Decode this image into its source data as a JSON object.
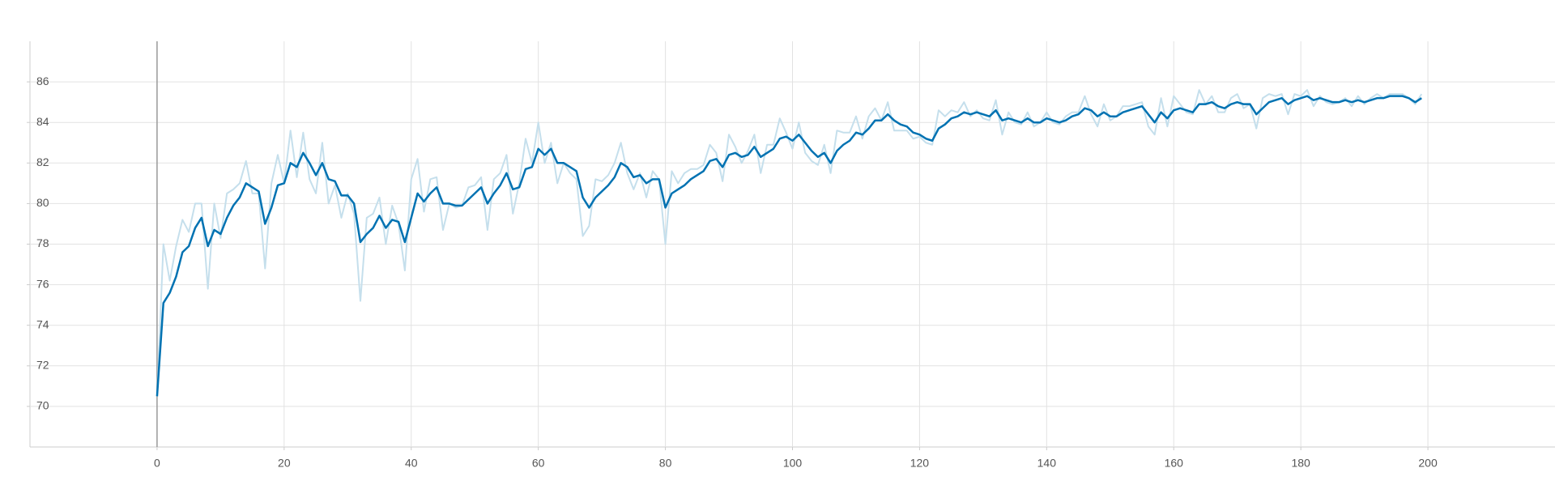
{
  "chart_data": {
    "type": "line",
    "x": [
      0,
      1,
      2,
      3,
      4,
      5,
      6,
      7,
      8,
      9,
      10,
      11,
      12,
      13,
      14,
      15,
      16,
      17,
      18,
      19,
      20,
      21,
      22,
      23,
      24,
      25,
      26,
      27,
      28,
      29,
      30,
      31,
      32,
      33,
      34,
      35,
      36,
      37,
      38,
      39,
      40,
      41,
      42,
      43,
      44,
      45,
      46,
      47,
      48,
      49,
      50,
      51,
      52,
      53,
      54,
      55,
      56,
      57,
      58,
      59,
      60,
      61,
      62,
      63,
      64,
      65,
      66,
      67,
      68,
      69,
      70,
      71,
      72,
      73,
      74,
      75,
      76,
      77,
      78,
      79,
      80,
      81,
      82,
      83,
      84,
      85,
      86,
      87,
      88,
      89,
      90,
      91,
      92,
      93,
      94,
      95,
      96,
      97,
      98,
      99,
      100,
      101,
      102,
      103,
      104,
      105,
      106,
      107,
      108,
      109,
      110,
      111,
      112,
      113,
      114,
      115,
      116,
      117,
      118,
      119,
      120,
      121,
      122,
      123,
      124,
      125,
      126,
      127,
      128,
      129,
      130,
      131,
      132,
      133,
      134,
      135,
      136,
      137,
      138,
      139,
      140,
      141,
      142,
      143,
      144,
      145,
      146,
      147,
      148,
      149,
      150,
      151,
      152,
      153,
      154,
      155,
      156,
      157,
      158,
      159,
      160,
      161,
      162,
      163,
      164,
      165,
      166,
      167,
      168,
      169,
      170,
      171,
      172,
      173,
      174,
      175,
      176,
      177,
      178,
      179,
      180,
      181,
      182,
      183,
      184,
      185,
      186,
      187,
      188,
      189,
      190,
      191,
      192,
      193,
      194,
      195,
      196,
      197,
      198,
      199
    ],
    "series": [
      {
        "color": "#c5dfec",
        "values": [
          70.5,
          78.0,
          76.2,
          77.9,
          79.2,
          78.6,
          80.0,
          80.0,
          75.8,
          80.0,
          78.3,
          80.5,
          80.7,
          81.0,
          82.1,
          80.5,
          80.5,
          76.8,
          81.0,
          82.4,
          81.0,
          83.6,
          81.3,
          83.5,
          81.2,
          80.5,
          83.0,
          80.0,
          80.9,
          79.3,
          80.5,
          79.5,
          75.2,
          79.3,
          79.5,
          80.3,
          78.0,
          79.9,
          79.0,
          76.7,
          81.2,
          82.2,
          79.6,
          81.2,
          81.3,
          78.7,
          80.0,
          79.8,
          79.9,
          80.8,
          80.9,
          81.3,
          78.7,
          81.2,
          81.5,
          82.4,
          79.5,
          81.0,
          83.2,
          82.0,
          84.0,
          82.0,
          83.0,
          81.0,
          82.0,
          81.5,
          81.2,
          78.4,
          78.9,
          81.2,
          81.1,
          81.4,
          82.0,
          83.0,
          81.5,
          80.7,
          81.5,
          80.3,
          81.6,
          81.2,
          78.0,
          81.6,
          81.0,
          81.5,
          81.7,
          81.7,
          81.9,
          82.9,
          82.5,
          81.1,
          83.4,
          82.8,
          82.0,
          82.6,
          83.4,
          81.5,
          82.9,
          82.9,
          84.2,
          83.5,
          82.7,
          84.0,
          82.5,
          82.1,
          81.9,
          82.9,
          81.5,
          83.6,
          83.5,
          83.5,
          84.3,
          83.2,
          84.3,
          84.7,
          84.1,
          85.0,
          83.6,
          83.6,
          83.6,
          83.2,
          83.3,
          83.0,
          82.9,
          84.6,
          84.3,
          84.6,
          84.5,
          85.0,
          84.3,
          84.6,
          84.2,
          84.1,
          85.1,
          83.4,
          84.5,
          84.0,
          83.9,
          84.5,
          83.8,
          84.0,
          84.5,
          84.0,
          83.9,
          84.3,
          84.5,
          84.5,
          85.3,
          84.4,
          83.8,
          84.9,
          84.1,
          84.3,
          84.8,
          84.8,
          84.9,
          85.0,
          83.8,
          83.4,
          85.2,
          83.8,
          85.3,
          84.9,
          84.5,
          84.4,
          85.6,
          84.9,
          85.3,
          84.5,
          84.5,
          85.2,
          85.4,
          84.7,
          84.9,
          83.7,
          85.2,
          85.4,
          85.3,
          85.4,
          84.4,
          85.4,
          85.3,
          85.6,
          84.8,
          85.3,
          85.0,
          84.9,
          85.0,
          85.2,
          84.8,
          85.3,
          84.9,
          85.2,
          85.4,
          85.2,
          85.4,
          85.4,
          85.4,
          85.2,
          84.9,
          85.4
        ]
      },
      {
        "color": "#0072b2",
        "values": [
          70.5,
          75.1,
          75.6,
          76.4,
          77.6,
          77.9,
          78.8,
          79.3,
          77.9,
          78.7,
          78.5,
          79.3,
          79.9,
          80.3,
          81.0,
          80.8,
          80.6,
          79.0,
          79.8,
          80.9,
          81.0,
          82.0,
          81.8,
          82.5,
          82.0,
          81.4,
          82.0,
          81.2,
          81.1,
          80.4,
          80.4,
          80.0,
          78.1,
          78.5,
          78.8,
          79.4,
          78.8,
          79.2,
          79.1,
          78.1,
          79.3,
          80.5,
          80.1,
          80.5,
          80.8,
          80.0,
          80.0,
          79.9,
          79.9,
          80.2,
          80.5,
          80.8,
          80.0,
          80.5,
          80.9,
          81.5,
          80.7,
          80.8,
          81.7,
          81.8,
          82.7,
          82.4,
          82.7,
          82.0,
          82.0,
          81.8,
          81.6,
          80.3,
          79.8,
          80.3,
          80.6,
          80.9,
          81.3,
          82.0,
          81.8,
          81.3,
          81.4,
          81.0,
          81.2,
          81.2,
          79.8,
          80.5,
          80.7,
          80.9,
          81.2,
          81.4,
          81.6,
          82.1,
          82.2,
          81.8,
          82.4,
          82.5,
          82.3,
          82.4,
          82.8,
          82.3,
          82.5,
          82.7,
          83.2,
          83.3,
          83.1,
          83.4,
          83.0,
          82.6,
          82.3,
          82.5,
          82.0,
          82.6,
          82.9,
          83.1,
          83.5,
          83.4,
          83.7,
          84.1,
          84.1,
          84.4,
          84.1,
          83.9,
          83.8,
          83.5,
          83.4,
          83.2,
          83.1,
          83.7,
          83.9,
          84.2,
          84.3,
          84.5,
          84.4,
          84.5,
          84.4,
          84.3,
          84.6,
          84.1,
          84.2,
          84.1,
          84.0,
          84.2,
          84.0,
          84.0,
          84.2,
          84.1,
          84.0,
          84.1,
          84.3,
          84.4,
          84.7,
          84.6,
          84.3,
          84.5,
          84.3,
          84.3,
          84.5,
          84.6,
          84.7,
          84.8,
          84.4,
          84.0,
          84.5,
          84.2,
          84.6,
          84.7,
          84.6,
          84.5,
          84.9,
          84.9,
          85.0,
          84.8,
          84.7,
          84.9,
          85.0,
          84.9,
          84.9,
          84.4,
          84.7,
          85.0,
          85.1,
          85.2,
          84.9,
          85.1,
          85.2,
          85.3,
          85.1,
          85.2,
          85.1,
          85.0,
          85.0,
          85.1,
          85.0,
          85.1,
          85.0,
          85.1,
          85.2,
          85.2,
          85.3,
          85.3,
          85.3,
          85.2,
          85.0,
          85.2
        ]
      }
    ],
    "xlim": [
      -20,
      220
    ],
    "xticks": [
      0,
      20,
      40,
      60,
      80,
      100,
      120,
      140,
      160,
      180,
      200
    ],
    "ylim": [
      68,
      88
    ],
    "yticks": [
      70,
      72,
      74,
      76,
      78,
      80,
      82,
      84,
      86
    ],
    "grid": true
  }
}
